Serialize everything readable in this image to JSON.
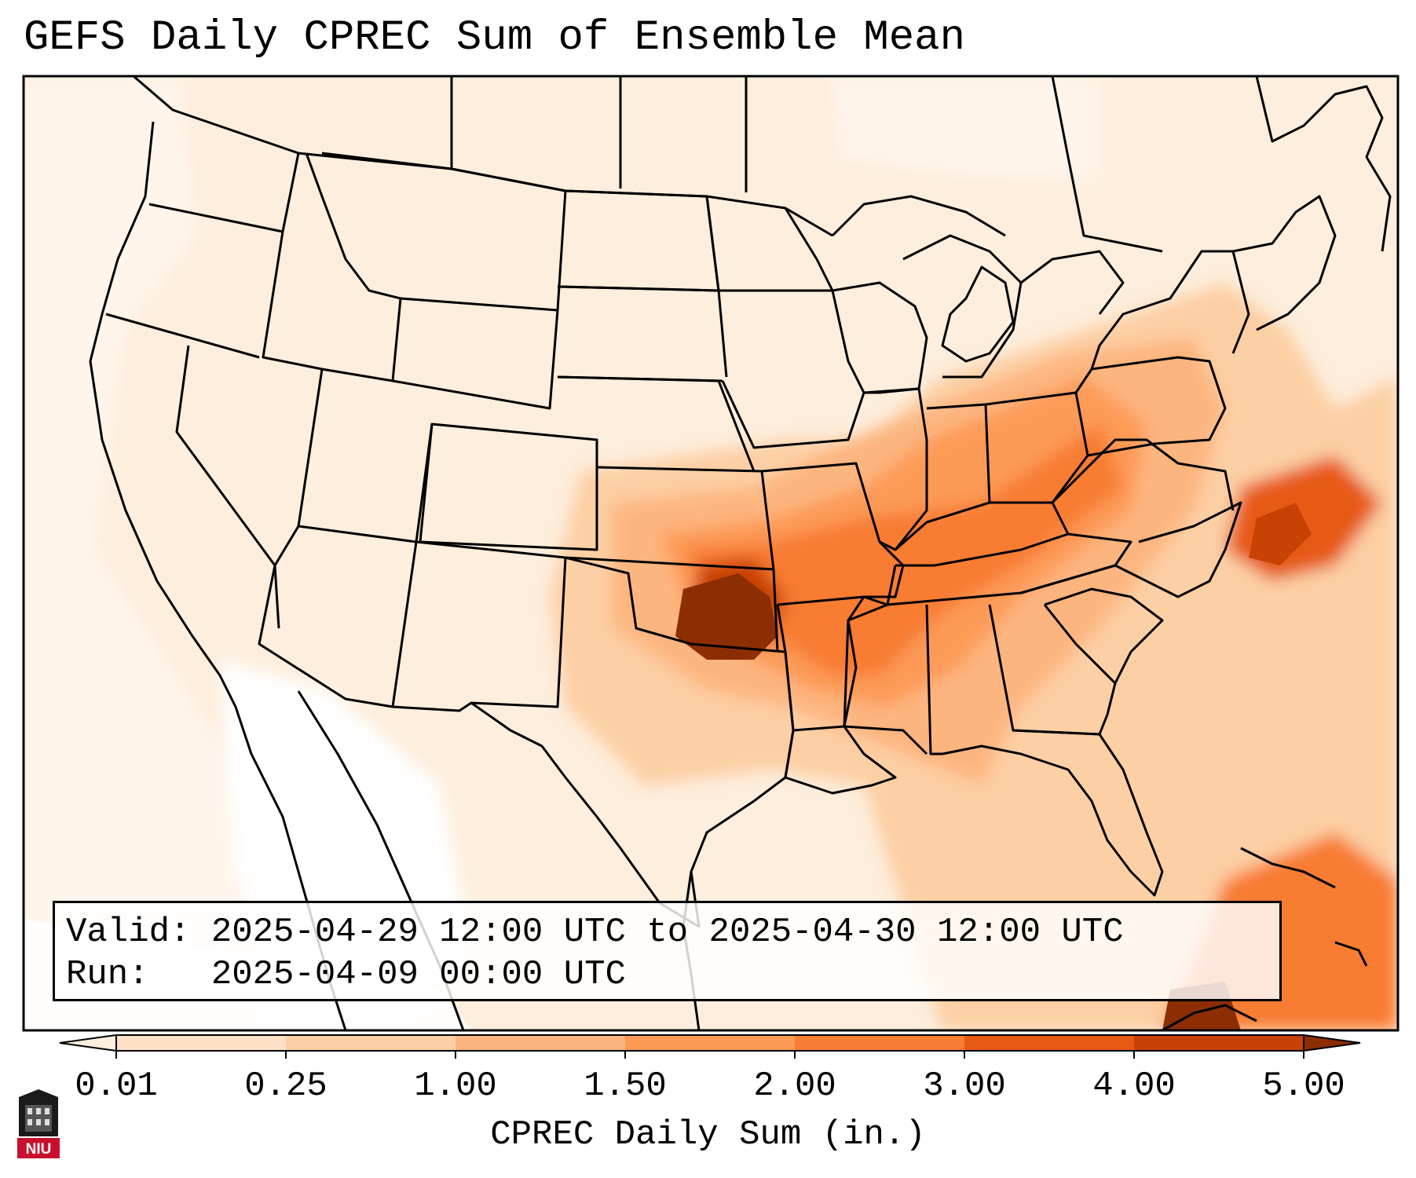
{
  "title": "GEFS Daily CPREC Sum of Ensemble Mean",
  "info": {
    "valid_line": "Valid: 2025-04-29 12:00 UTC to 2025-04-30 12:00 UTC",
    "run_line": "Run:   2025-04-09 00:00 UTC"
  },
  "colorbar": {
    "label": "CPREC Daily Sum (in.)",
    "ticks": [
      "0.01",
      "0.25",
      "1.00",
      "1.50",
      "2.00",
      "3.00",
      "4.00",
      "5.00"
    ],
    "colors": [
      "#fdeedd",
      "#fde0c5",
      "#fdcfa4",
      "#fdb57f",
      "#fd9a56",
      "#f87c33",
      "#e75a13",
      "#c84105",
      "#8c2d04"
    ],
    "extend": "both"
  },
  "logo": {
    "text": "NIU"
  },
  "colors": {
    "frame": "#000000",
    "background": "#ffffff"
  }
}
